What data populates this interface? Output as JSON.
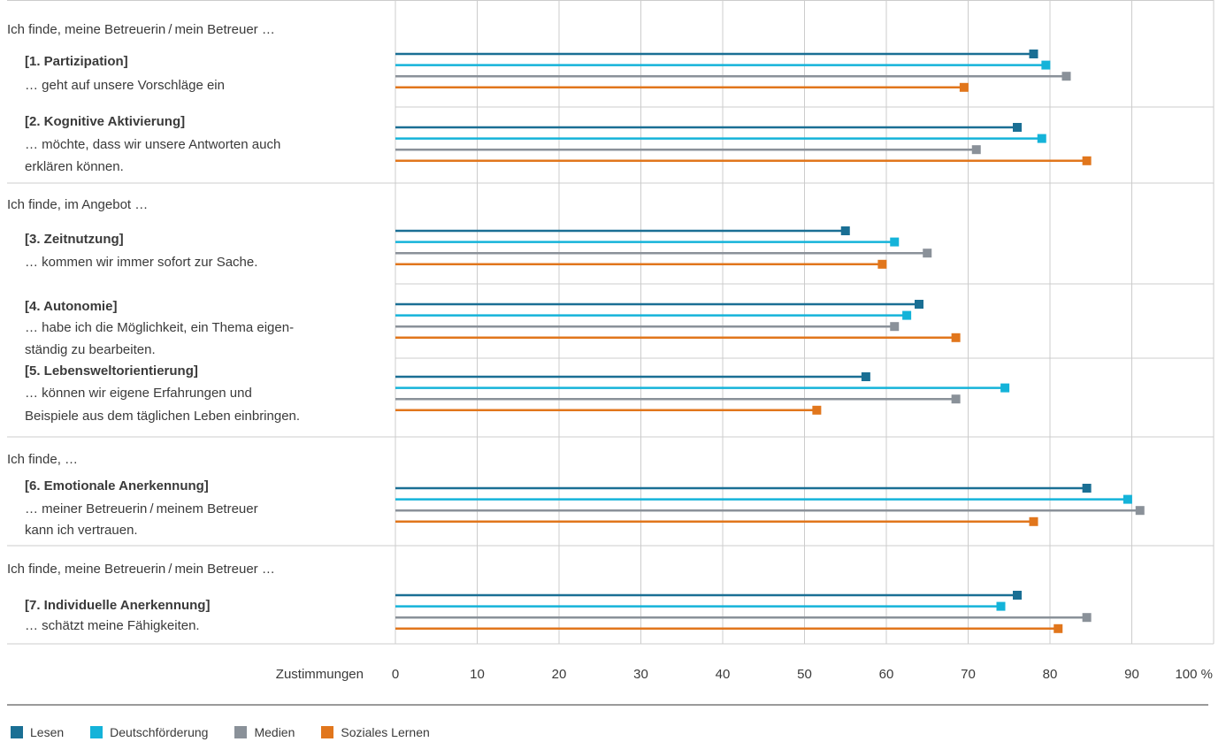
{
  "chart_data": {
    "type": "bar",
    "orientation": "horizontal",
    "xlabel": "Zustimmungen",
    "xlim": [
      0,
      100
    ],
    "ticks": [
      "0",
      "10",
      "20",
      "30",
      "40",
      "50",
      "60",
      "70",
      "80",
      "90",
      "100 %"
    ],
    "grid": true,
    "legend_position": "bottom-left",
    "series": [
      {
        "name": "Lesen",
        "color": "#1a6f94"
      },
      {
        "name": "Deutschförderung",
        "color": "#14b3d9"
      },
      {
        "name": "Medien",
        "color": "#8a9199"
      },
      {
        "name": "Soziales Lernen",
        "color": "#e1761c"
      }
    ],
    "groups": [
      {
        "intro": "Ich finde, meine Betreuerin / mein Betreuer …",
        "categories": [
          {
            "title": "[1. Partizipation]",
            "text": [
              "… geht auf unsere Vorschläge ein"
            ],
            "values": [
              78,
              79.5,
              82,
              69.5
            ]
          },
          {
            "title": "[2. Kognitive Aktivierung]",
            "text": [
              "… möchte, dass wir unsere Antworten auch",
              "erklären können."
            ],
            "values": [
              76,
              79,
              71,
              84.5
            ]
          }
        ]
      },
      {
        "intro": "Ich finde, im Angebot …",
        "categories": [
          {
            "title": "[3. Zeitnutzung]",
            "text": [
              "… kommen wir immer sofort zur Sache."
            ],
            "values": [
              55,
              61,
              65,
              59.5
            ]
          },
          {
            "title": "[4. Autonomie]",
            "text": [
              "… habe ich die Möglichkeit, ein Thema eigen-",
              "ständig zu bearbeiten."
            ],
            "values": [
              64,
              62.5,
              61,
              68.5
            ]
          },
          {
            "title": "[5. Lebensweltorientierung]",
            "text": [
              "… können wir eigene Erfahrungen und",
              "Beispiele aus dem täglichen Leben einbringen."
            ],
            "values": [
              57.5,
              74.5,
              68.5,
              51.5
            ]
          }
        ]
      },
      {
        "intro": "Ich finde, …",
        "categories": [
          {
            "title": "[6. Emotionale Anerkennung]",
            "text": [
              "… meiner Betreuerin / meinem Betreuer",
              "kann ich vertrauen."
            ],
            "values": [
              84.5,
              89.5,
              91,
              78
            ]
          }
        ]
      },
      {
        "intro": "Ich finde, meine Betreuerin / mein Betreuer …",
        "categories": [
          {
            "title": "[7. Individuelle Anerkennung]",
            "text": [
              "… schätzt meine Fähigkeiten."
            ],
            "values": [
              76,
              74,
              84.5,
              81
            ]
          }
        ]
      }
    ]
  }
}
